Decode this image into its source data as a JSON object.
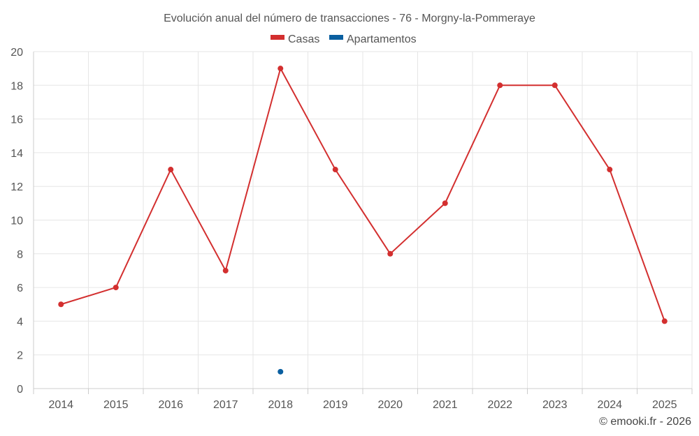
{
  "chart_data": {
    "type": "line",
    "title": "Evolución anual del número de transacciones - 76 - Morgny-la-Pommeraye",
    "categories": [
      "2014",
      "2015",
      "2016",
      "2017",
      "2018",
      "2019",
      "2020",
      "2021",
      "2022",
      "2023",
      "2024",
      "2025"
    ],
    "series": [
      {
        "name": "Casas",
        "color": "#d32f2f",
        "values": [
          5,
          6,
          13,
          7,
          19,
          13,
          8,
          11,
          18,
          18,
          13,
          4
        ]
      },
      {
        "name": "Apartamentos",
        "color": "#0a5fa0",
        "values": [
          null,
          null,
          null,
          null,
          1,
          null,
          null,
          null,
          null,
          null,
          null,
          null
        ]
      }
    ],
    "ylim": [
      0,
      20
    ],
    "yticks": [
      "0",
      "2",
      "4",
      "6",
      "8",
      "10",
      "12",
      "14",
      "16",
      "18",
      "20"
    ],
    "grid": true,
    "legend": "top-center",
    "xlabel": "",
    "ylabel": ""
  },
  "credit": "© emooki.fr - 2026"
}
